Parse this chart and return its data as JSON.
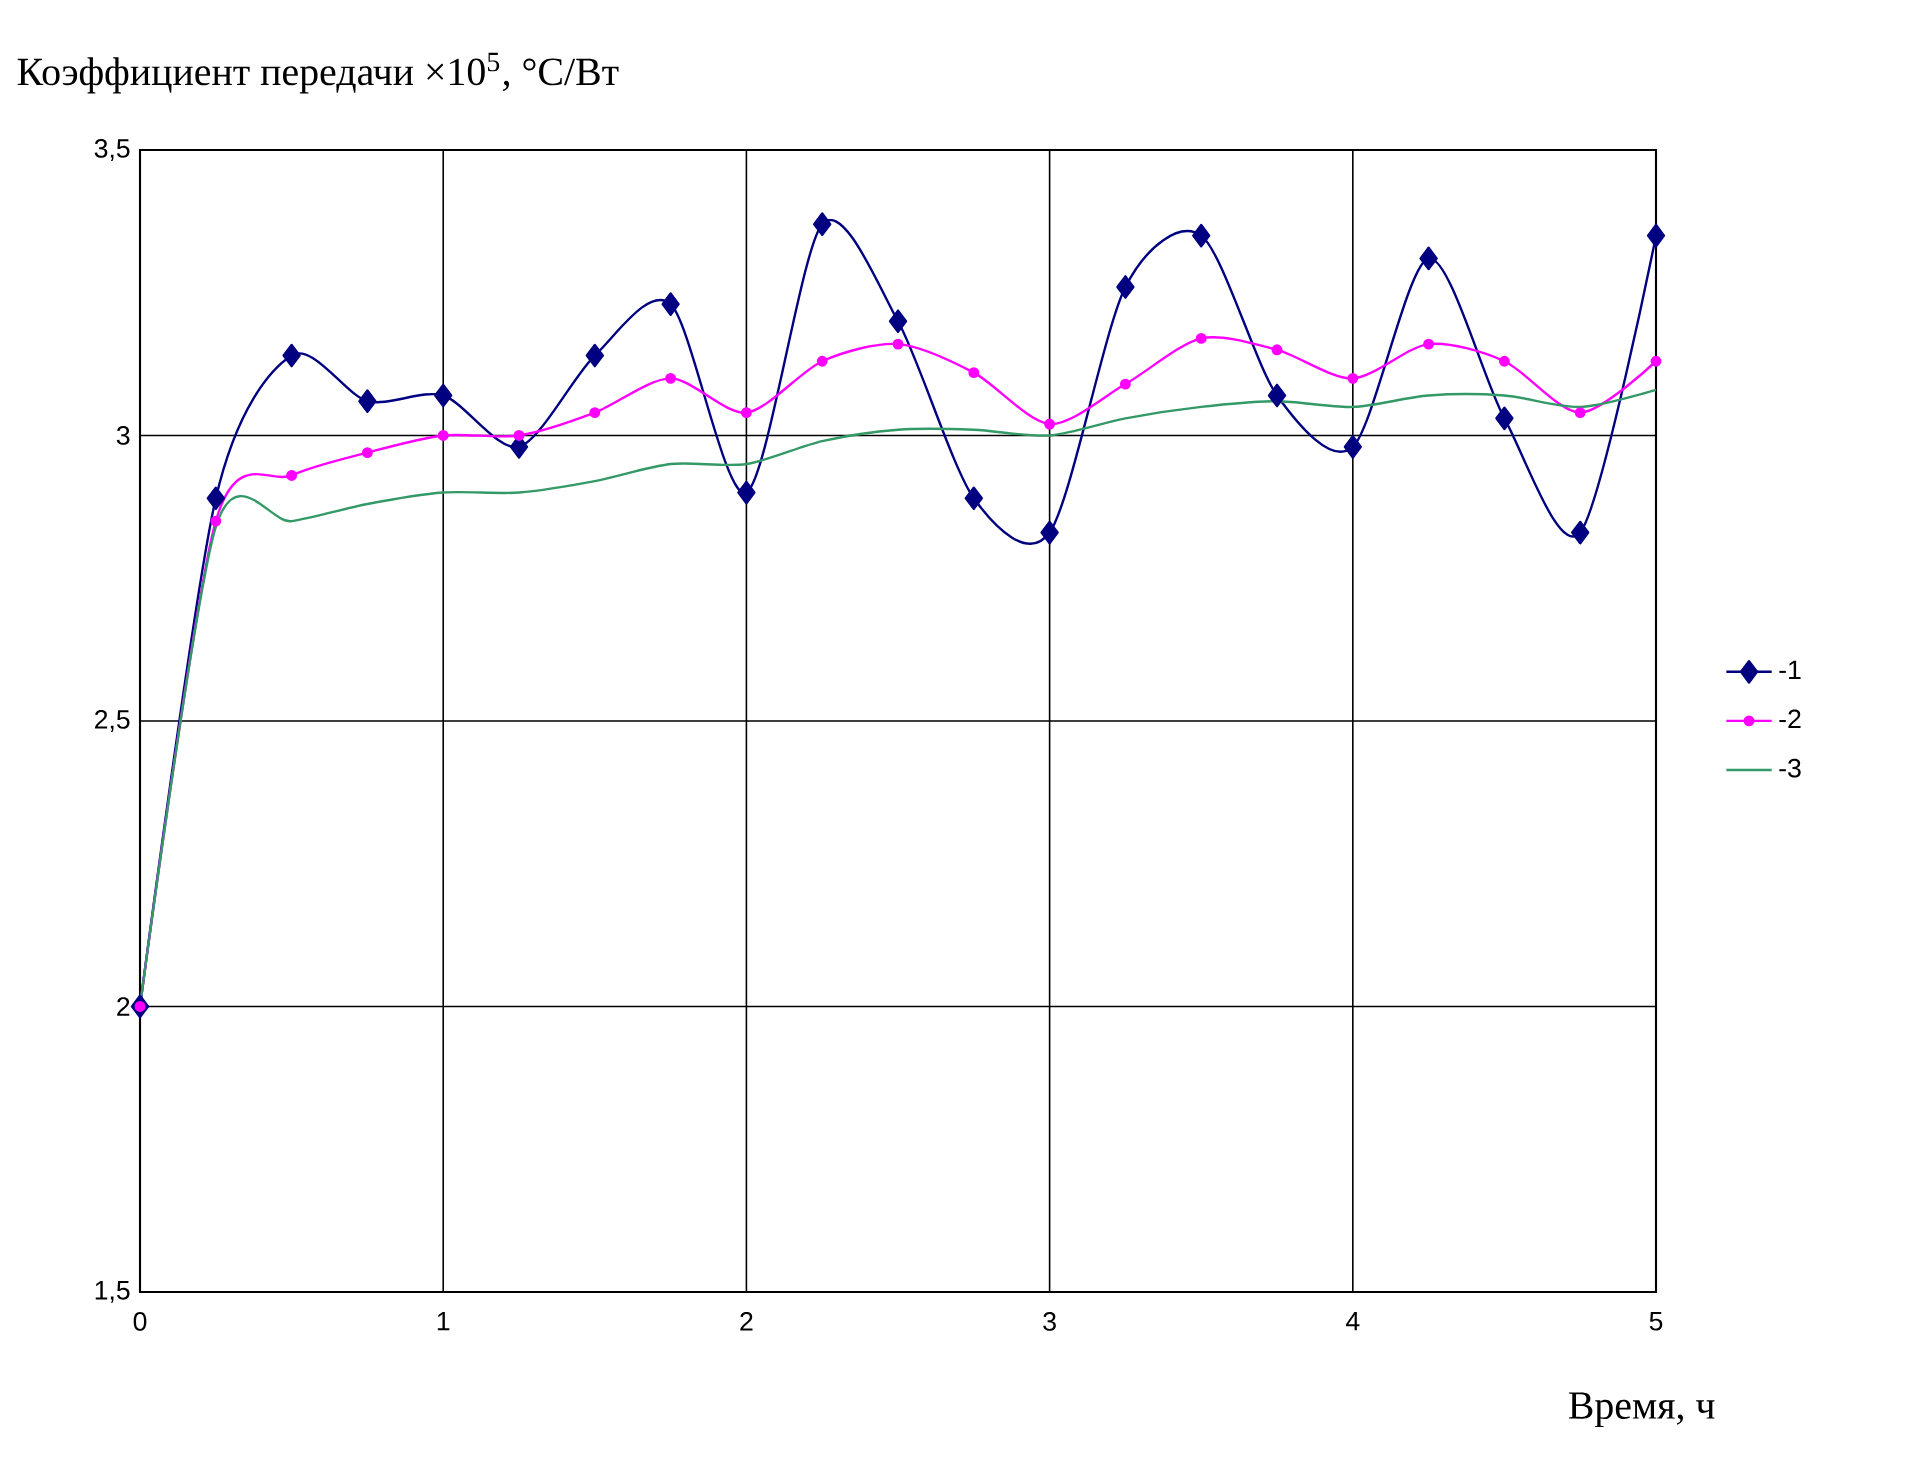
{
  "chart_data": {
    "type": "line",
    "ylabel": "Коэффициент передачи  ×10$^{5}$, °C/Вт",
    "xlabel": "Время, ч",
    "x": [
      0,
      0.25,
      0.5,
      0.75,
      1,
      1.25,
      1.5,
      1.75,
      2,
      2.25,
      2.5,
      2.75,
      3,
      3.25,
      3.5,
      3.75,
      4,
      4.25,
      4.5,
      4.75,
      5
    ],
    "series": [
      {
        "name": "-1",
        "color": "#000080",
        "marker": "diamond",
        "values": [
          2.0,
          2.89,
          3.14,
          3.06,
          3.07,
          2.98,
          3.14,
          3.23,
          2.9,
          3.37,
          3.2,
          2.89,
          2.83,
          3.26,
          3.35,
          3.07,
          2.98,
          3.31,
          3.03,
          2.83,
          3.35
        ]
      },
      {
        "name": "-2",
        "color": "#ff00ff",
        "marker": "circle",
        "values": [
          2.0,
          2.85,
          2.93,
          2.97,
          3.0,
          3.0,
          3.04,
          3.1,
          3.04,
          3.13,
          3.16,
          3.11,
          3.02,
          3.09,
          3.17,
          3.15,
          3.1,
          3.16,
          3.13,
          3.04,
          3.13
        ]
      },
      {
        "name": "-3",
        "color": "#339966",
        "marker": "none",
        "values": [
          2.0,
          2.84,
          2.85,
          2.88,
          2.9,
          2.9,
          2.92,
          2.95,
          2.95,
          2.99,
          3.01,
          3.01,
          3.0,
          3.03,
          3.05,
          3.06,
          3.05,
          3.07,
          3.07,
          3.05,
          3.08
        ]
      }
    ],
    "xlim": [
      0,
      5
    ],
    "xticks": [
      0,
      1,
      2,
      3,
      4,
      5
    ],
    "ylim": [
      1.5,
      3.5
    ],
    "yticks": [
      {
        "value": 1.5,
        "label": "1,5"
      },
      2,
      {
        "value": 2.5,
        "label": "2,5"
      },
      3,
      {
        "value": 3.5,
        "label": "3,5"
      }
    ],
    "grid": true,
    "legend": "right",
    "line_style": "solid"
  }
}
